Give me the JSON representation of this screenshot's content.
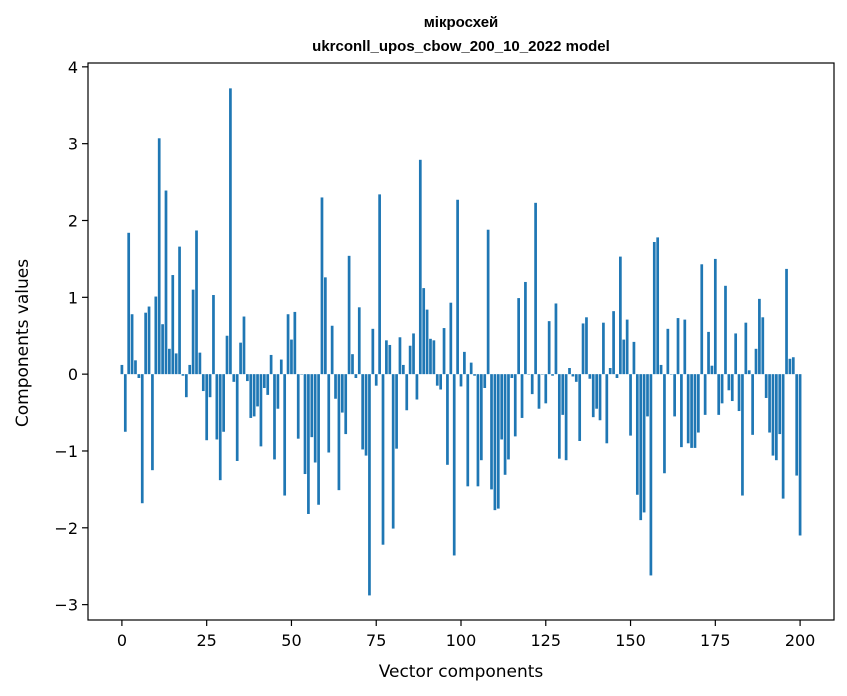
{
  "chart_data": {
    "type": "bar",
    "title_line1": "мікросхей",
    "title_line2": "ukrconll_upos_cbow_200_10_2022 model",
    "xlabel": "Vector components",
    "ylabel": "Components values",
    "xlim": [
      -10,
      210
    ],
    "ylim": [
      -3.2,
      4.05
    ],
    "xticks": [
      0,
      25,
      50,
      75,
      100,
      125,
      150,
      175,
      200
    ],
    "yticks": [
      -3,
      -2,
      -1,
      0,
      1,
      2,
      3,
      4
    ],
    "bar_color": "#1f77b4",
    "values": [
      0.12,
      -0.75,
      1.84,
      0.78,
      0.18,
      -0.05,
      -1.68,
      0.8,
      0.88,
      -1.25,
      1.01,
      3.07,
      0.65,
      2.39,
      0.33,
      1.29,
      0.27,
      1.66,
      -0.02,
      -0.3,
      0.12,
      1.1,
      1.87,
      0.28,
      -0.22,
      -0.86,
      -0.3,
      1.03,
      -0.85,
      -1.38,
      -0.75,
      0.5,
      3.72,
      -0.1,
      -1.13,
      0.41,
      0.75,
      -0.09,
      -0.57,
      -0.55,
      -0.42,
      -0.94,
      -0.18,
      -0.27,
      0.25,
      -1.11,
      -0.45,
      0.19,
      -1.58,
      0.78,
      0.45,
      0.81,
      -0.84,
      0.0,
      -1.3,
      -1.82,
      -0.82,
      -1.15,
      -1.7,
      2.3,
      1.26,
      -1.02,
      0.63,
      -0.32,
      -1.51,
      -0.5,
      -0.78,
      1.54,
      0.26,
      -0.05,
      0.87,
      -0.98,
      -1.06,
      -2.88,
      0.59,
      -0.15,
      2.34,
      -2.22,
      0.44,
      0.38,
      -2.01,
      -0.97,
      0.48,
      0.12,
      -0.47,
      0.37,
      0.53,
      -0.33,
      2.79,
      1.12,
      0.84,
      0.46,
      0.44,
      -0.15,
      -0.2,
      0.6,
      -1.18,
      0.93,
      -2.36,
      2.27,
      -0.16,
      0.29,
      -1.46,
      0.15,
      -0.02,
      -1.46,
      -1.12,
      -0.18,
      1.88,
      -1.5,
      -1.77,
      -1.75,
      -0.85,
      -1.31,
      -1.11,
      -0.05,
      -0.81,
      0.99,
      -0.57,
      1.2,
      0.0,
      -0.26,
      2.23,
      -0.45,
      0.0,
      -0.38,
      0.69,
      -0.02,
      0.92,
      -1.1,
      -0.53,
      -1.12,
      0.08,
      -0.03,
      -0.1,
      -0.87,
      0.66,
      0.74,
      -0.06,
      -0.56,
      -0.45,
      -0.6,
      0.67,
      -0.9,
      0.08,
      0.82,
      -0.05,
      1.53,
      0.45,
      0.71,
      -0.8,
      0.42,
      -1.57,
      -1.9,
      -1.8,
      -0.55,
      -2.62,
      1.72,
      1.78,
      0.12,
      -1.29,
      0.59,
      0.0,
      -0.55,
      0.73,
      -0.95,
      0.71,
      -0.9,
      -0.96,
      -0.96,
      -0.76,
      1.43,
      -0.53,
      0.55,
      0.11,
      1.5,
      -0.53,
      -0.38,
      1.15,
      -0.21,
      -0.35,
      0.53,
      -0.48,
      -1.58,
      0.67,
      0.05,
      -0.79,
      0.33,
      0.98,
      0.74,
      -0.31,
      -0.76,
      -1.06,
      -1.12,
      -0.78,
      -1.62,
      1.37,
      0.2,
      0.22,
      -1.32,
      -2.1
    ]
  }
}
